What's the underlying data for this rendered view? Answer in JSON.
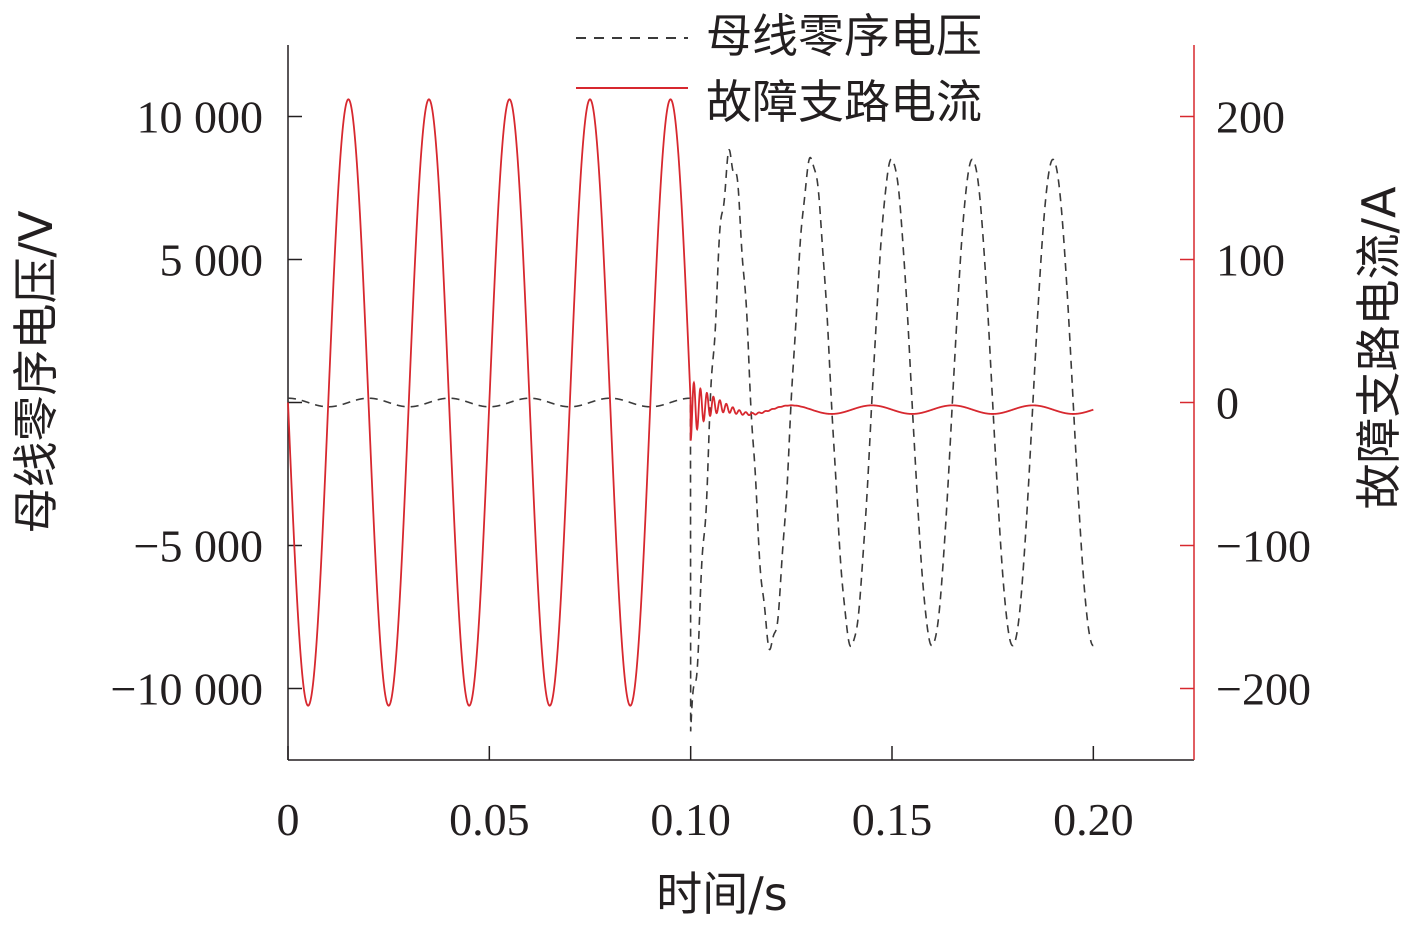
{
  "chart_data": {
    "type": "line",
    "xlabel": "时间/s",
    "ylabel_left": "母线零序电压/V",
    "ylabel_right": "故障支路电流/A",
    "xlim": [
      0,
      0.225
    ],
    "ylim_left": [
      -12500,
      12500
    ],
    "ylim_right": [
      -250,
      250
    ],
    "x_ticks": [
      0,
      0.05,
      0.1,
      0.15,
      0.2
    ],
    "x_tick_labels": [
      "0",
      "0.05",
      "0.10",
      "0.15",
      "0.20"
    ],
    "y_left_ticks": [
      10000,
      5000,
      0,
      -5000,
      -10000
    ],
    "y_left_tick_labels": [
      "10 000",
      "5 000",
      "",
      "−5 000",
      "−10 000"
    ],
    "y_right_ticks": [
      200,
      100,
      0,
      -100,
      -200
    ],
    "y_right_tick_labels": [
      "200",
      "100",
      "0",
      "−100",
      "−200"
    ],
    "legend_position": "top-center",
    "fault_time": 0.1,
    "frequency_hz": 50,
    "series": [
      {
        "name": "母线零序电压",
        "axis": "left",
        "style": "dashed",
        "color": "#3a3a3a",
        "pre_fault_amplitude": 150,
        "post_fault_amplitude": 8500,
        "initial_transient_min": -11500,
        "initial_transient_max": 9100
      },
      {
        "name": "故障支路电流",
        "axis": "right",
        "style": "solid",
        "color": "#d7282f",
        "pre_fault_amplitude": 212,
        "post_fault_amplitude": 3,
        "post_fault_offset": -5,
        "initial_transient_amplitude": 12
      }
    ],
    "grid": false
  }
}
